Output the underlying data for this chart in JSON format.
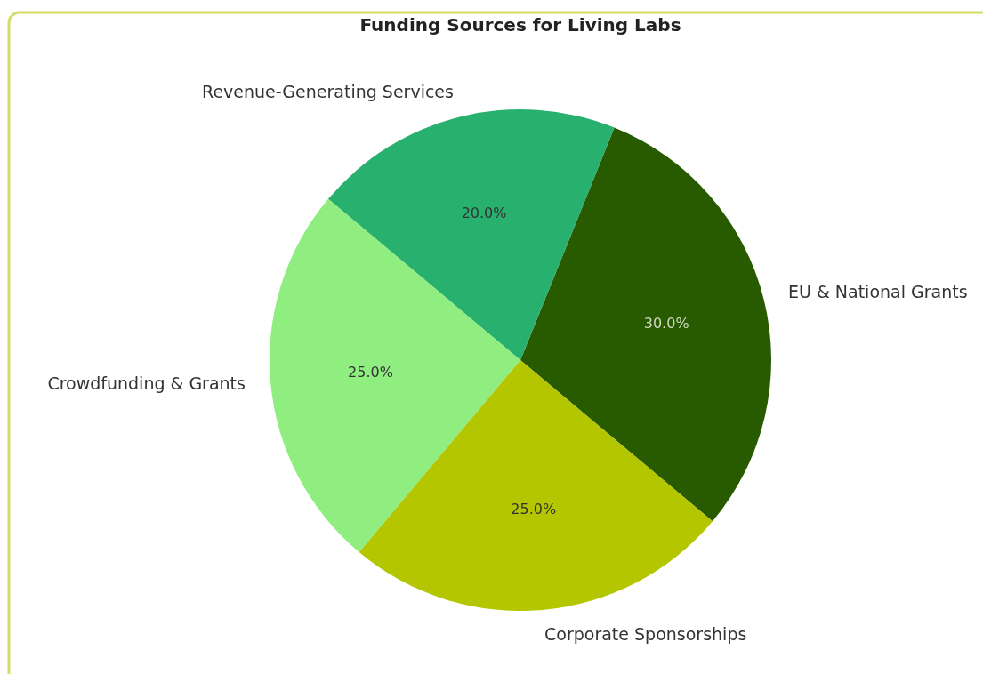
{
  "chart_data": {
    "type": "pie",
    "title": "Funding Sources for Living Labs",
    "categories": [
      "EU & National Grants",
      "Revenue-Generating Services",
      "Crowdfunding & Grants",
      "Corporate Sponsorships"
    ],
    "values": [
      30,
      20,
      25,
      25
    ],
    "colors": [
      "#285b00",
      "#27b06e",
      "#90ee80",
      "#b3c600"
    ],
    "value_labels": [
      "30.0%",
      "20.0%",
      "25.0%",
      "25.0%"
    ]
  }
}
